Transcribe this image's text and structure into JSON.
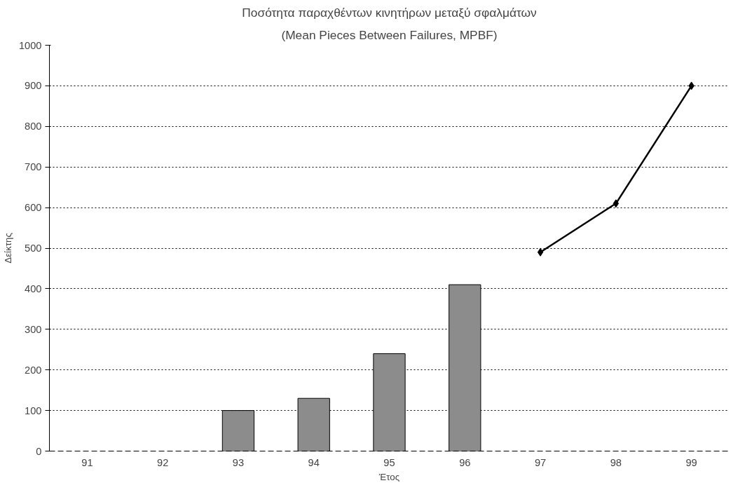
{
  "chart_data": {
    "type": "bar",
    "title": "Ποσότητα παραχθέντων κινητήρων μεταξύ σφαλμάτων",
    "subtitle": "(Mean Pieces Between Failures, MPBF)",
    "xlabel": "Έτος",
    "ylabel": "Δείκτης",
    "categories": [
      "91",
      "92",
      "93",
      "94",
      "95",
      "96",
      "97",
      "98",
      "99"
    ],
    "ylim": [
      0,
      1000
    ],
    "yticks": [
      0,
      100,
      200,
      300,
      400,
      500,
      600,
      700,
      800,
      900,
      1000
    ],
    "grid": "y",
    "series": [
      {
        "color": "#8c8c8c",
        "values": [
          null,
          null,
          100,
          130,
          240,
          410,
          null,
          null,
          null
        ]
      },
      {
        "type": "line",
        "color": "#000000",
        "marker": "diamond",
        "line_style": "solid",
        "values": [
          null,
          null,
          null,
          null,
          null,
          null,
          490,
          610,
          900
        ]
      }
    ]
  }
}
